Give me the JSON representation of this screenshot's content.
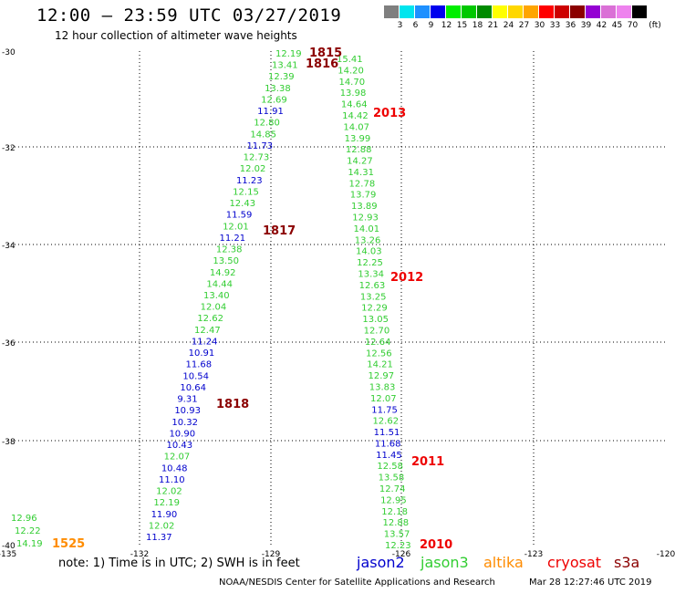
{
  "header": {
    "title": "12:00 — 23:59 UTC 03/27/2019",
    "subtitle": "12 hour collection of altimeter wave heights"
  },
  "scale": {
    "unit": "(ft)",
    "bins": [
      {
        "color": "#7f7f7f",
        "label": "3"
      },
      {
        "color": "#00e5ee",
        "label": "6"
      },
      {
        "color": "#1e90ff",
        "label": "9"
      },
      {
        "color": "#0000ee",
        "label": "12"
      },
      {
        "color": "#00ee00",
        "label": "15"
      },
      {
        "color": "#00c800",
        "label": "18"
      },
      {
        "color": "#008b00",
        "label": "21"
      },
      {
        "color": "#ffff00",
        "label": "24"
      },
      {
        "color": "#ffd700",
        "label": "27"
      },
      {
        "color": "#ffa500",
        "label": "30"
      },
      {
        "color": "#ff0000",
        "label": "33"
      },
      {
        "color": "#cd0000",
        "label": "36"
      },
      {
        "color": "#8b0000",
        "label": "39"
      },
      {
        "color": "#9400d3",
        "label": "42"
      },
      {
        "color": "#da70d6",
        "label": "45"
      },
      {
        "color": "#ee82ee",
        "label": "70"
      },
      {
        "color": "#000000",
        "label": ""
      }
    ]
  },
  "axes": {
    "lat_labels": [
      "-30",
      "-32",
      "-34",
      "-36",
      "-38",
      "-40"
    ],
    "lon_labels": [
      "-135",
      "-132",
      "-129",
      "-126",
      "-123",
      "-120"
    ]
  },
  "colors": {
    "jason2": "#0000cd",
    "jason3": "#32cd32",
    "altika": "#ff8c00",
    "cryosat": "#ee0000",
    "s3a": "#8b0000",
    "pass_time": "#8b0000",
    "pass_time_red": "#ee0000",
    "pass_time_orange": "#ff8c00"
  },
  "passes": [
    {
      "time": "1815",
      "color": "#8b0000"
    },
    {
      "time": "1816",
      "color": "#8b0000"
    },
    {
      "time": "1817",
      "color": "#8b0000"
    },
    {
      "time": "1818",
      "color": "#8b0000"
    },
    {
      "time": "2013",
      "color": "#ee0000"
    },
    {
      "time": "2012",
      "color": "#ee0000"
    },
    {
      "time": "2011",
      "color": "#ee0000"
    },
    {
      "time": "2010",
      "color": "#ee0000"
    },
    {
      "time": "1525",
      "color": "#ff8c00"
    }
  ],
  "track_west": [
    {
      "v": "12.19",
      "c": "g"
    },
    {
      "v": "13.41",
      "c": "g"
    },
    {
      "v": "12.39",
      "c": "g"
    },
    {
      "v": "13.38",
      "c": "g"
    },
    {
      "v": "12.69",
      "c": "g"
    },
    {
      "v": "11.91",
      "c": "b"
    },
    {
      "v": "12.80",
      "c": "g"
    },
    {
      "v": "14.85",
      "c": "g"
    },
    {
      "v": "11.73",
      "c": "b"
    },
    {
      "v": "12.73",
      "c": "g"
    },
    {
      "v": "12.02",
      "c": "g"
    },
    {
      "v": "11.23",
      "c": "b"
    },
    {
      "v": "12.15",
      "c": "g"
    },
    {
      "v": "12.43",
      "c": "g"
    },
    {
      "v": "11.59",
      "c": "b"
    },
    {
      "v": "12.01",
      "c": "g"
    },
    {
      "v": "11.21",
      "c": "b"
    },
    {
      "v": "12.38",
      "c": "g"
    },
    {
      "v": "13.50",
      "c": "g"
    },
    {
      "v": "14.92",
      "c": "g"
    },
    {
      "v": "14.44",
      "c": "g"
    },
    {
      "v": "13.40",
      "c": "g"
    },
    {
      "v": "12.04",
      "c": "g"
    },
    {
      "v": "12.62",
      "c": "g"
    },
    {
      "v": "12.47",
      "c": "g"
    },
    {
      "v": "11.24",
      "c": "b"
    },
    {
      "v": "10.91",
      "c": "b"
    },
    {
      "v": "11.68",
      "c": "b"
    },
    {
      "v": "10.54",
      "c": "b"
    },
    {
      "v": "10.64",
      "c": "b"
    },
    {
      "v": "9.31",
      "c": "b"
    },
    {
      "v": "10.93",
      "c": "b"
    },
    {
      "v": "10.32",
      "c": "b"
    },
    {
      "v": "10.90",
      "c": "b"
    },
    {
      "v": "10.43",
      "c": "b"
    },
    {
      "v": "12.07",
      "c": "g"
    },
    {
      "v": "10.48",
      "c": "b"
    },
    {
      "v": "11.10",
      "c": "b"
    },
    {
      "v": "12.02",
      "c": "g"
    },
    {
      "v": "12.19",
      "c": "g"
    },
    {
      "v": "11.90",
      "c": "b"
    },
    {
      "v": "12.02",
      "c": "g"
    },
    {
      "v": "11.37",
      "c": "b"
    }
  ],
  "track_east": [
    {
      "v": "15.41",
      "c": "g"
    },
    {
      "v": "14.20",
      "c": "g"
    },
    {
      "v": "14.70",
      "c": "g"
    },
    {
      "v": "13.98",
      "c": "g"
    },
    {
      "v": "14.64",
      "c": "g"
    },
    {
      "v": "14.42",
      "c": "g"
    },
    {
      "v": "14.07",
      "c": "g"
    },
    {
      "v": "13.99",
      "c": "g"
    },
    {
      "v": "12.88",
      "c": "g"
    },
    {
      "v": "14.27",
      "c": "g"
    },
    {
      "v": "14.31",
      "c": "g"
    },
    {
      "v": "12.78",
      "c": "g"
    },
    {
      "v": "13.79",
      "c": "g"
    },
    {
      "v": "13.89",
      "c": "g"
    },
    {
      "v": "12.93",
      "c": "g"
    },
    {
      "v": "14.01",
      "c": "g"
    },
    {
      "v": "13.26",
      "c": "g"
    },
    {
      "v": "14.03",
      "c": "g"
    },
    {
      "v": "12.25",
      "c": "g"
    },
    {
      "v": "13.34",
      "c": "g"
    },
    {
      "v": "12.63",
      "c": "g"
    },
    {
      "v": "13.25",
      "c": "g"
    },
    {
      "v": "12.29",
      "c": "g"
    },
    {
      "v": "13.05",
      "c": "g"
    },
    {
      "v": "12.70",
      "c": "g"
    },
    {
      "v": "12.64",
      "c": "g"
    },
    {
      "v": "12.56",
      "c": "g"
    },
    {
      "v": "14.21",
      "c": "g"
    },
    {
      "v": "12.97",
      "c": "g"
    },
    {
      "v": "13.83",
      "c": "g"
    },
    {
      "v": "12.07",
      "c": "g"
    },
    {
      "v": "11.75",
      "c": "b"
    },
    {
      "v": "12.62",
      "c": "g"
    },
    {
      "v": "11.51",
      "c": "b"
    },
    {
      "v": "11.68",
      "c": "b"
    },
    {
      "v": "11.45",
      "c": "b"
    },
    {
      "v": "12.58",
      "c": "g"
    },
    {
      "v": "13.58",
      "c": "g"
    },
    {
      "v": "12.74",
      "c": "g"
    },
    {
      "v": "12.95",
      "c": "g"
    },
    {
      "v": "12.18",
      "c": "g"
    },
    {
      "v": "12.88",
      "c": "g"
    },
    {
      "v": "13.57",
      "c": "g"
    },
    {
      "v": "12.23",
      "c": "g"
    }
  ],
  "track_corner": [
    {
      "v": "12.96",
      "c": "g"
    },
    {
      "v": "12.22",
      "c": "g"
    },
    {
      "v": "14.19",
      "c": "g"
    }
  ],
  "footer": {
    "note": "note:  1) Time is in UTC;  2) SWH is in feet",
    "legend": [
      "jason2",
      "jason3",
      "altika",
      "cryosat",
      "s3a"
    ],
    "credit": "NOAA/NESDIS Center for Satellite Applications and Research",
    "timestamp": "Mar 28 12:27:46 UTC 2019"
  }
}
